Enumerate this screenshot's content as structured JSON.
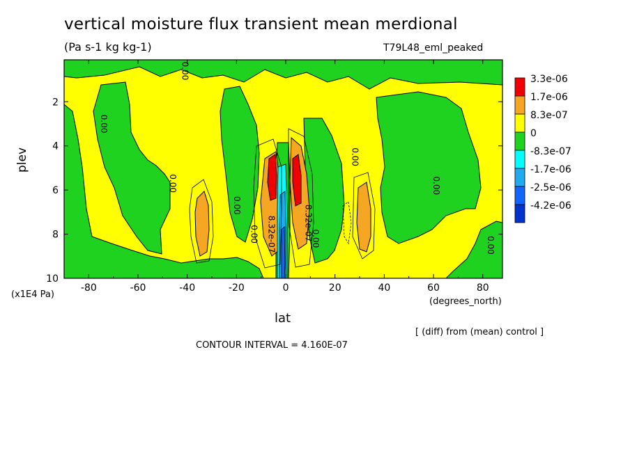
{
  "chart_data": {
    "type": "heatmap",
    "title": "vertical moisture flux transient mean merdional",
    "subtitle": "(Pa s-1 kg kg-1)",
    "run_label": "T79L48_eml_peaked",
    "xlabel": "lat",
    "xunit": "(degrees_north)",
    "ylabel": "plev",
    "yunit": "(x1E4 Pa)",
    "xlim": [
      -90,
      88
    ],
    "ylim": [
      10,
      0.1
    ],
    "x_ticks": [
      -80,
      -60,
      -40,
      -20,
      0,
      20,
      40,
      60,
      80
    ],
    "y_ticks": [
      2,
      4,
      6,
      8,
      10
    ],
    "footer_note": "[ (diff) from (mean) control ]",
    "contour_interval": "CONTOUR INTERVAL = 4.160E-07",
    "legend": [
      {
        "label": "3.3e-06",
        "color": "#f20000"
      },
      {
        "label": "1.7e-06",
        "color": "#f5a623"
      },
      {
        "label": "8.3e-07",
        "color": "#ffff00"
      },
      {
        "label": "0",
        "color": "#1fd21f"
      },
      {
        "label": "-8.3e-07",
        "color": "#00ffff"
      },
      {
        "label": "-1.7e-06",
        "color": "#22aaee"
      },
      {
        "label": "-2.5e-06",
        "color": "#1166ff"
      },
      {
        "label": "-4.2e-06",
        "color": "#0033cc"
      }
    ],
    "contour_labels": [
      {
        "text": "0.00",
        "x": -42,
        "y": 0.6
      },
      {
        "text": "0.00",
        "x": -75,
        "y": 3
      },
      {
        "text": "0.00",
        "x": -47,
        "y": 5.7
      },
      {
        "text": "0.00",
        "x": -21,
        "y": 6.7
      },
      {
        "text": "0.00",
        "x": -14,
        "y": 8
      },
      {
        "text": "8.32e-07",
        "x": -7,
        "y": 8
      },
      {
        "text": "0.00",
        "x": 11,
        "y": 8.2
      },
      {
        "text": "8.32e-07",
        "x": 8,
        "y": 7.5
      },
      {
        "text": "0.00",
        "x": 27,
        "y": 4.5
      },
      {
        "text": "0.00",
        "x": 60,
        "y": 5.8
      },
      {
        "text": "0.00",
        "x": 82,
        "y": 8.5
      }
    ]
  }
}
